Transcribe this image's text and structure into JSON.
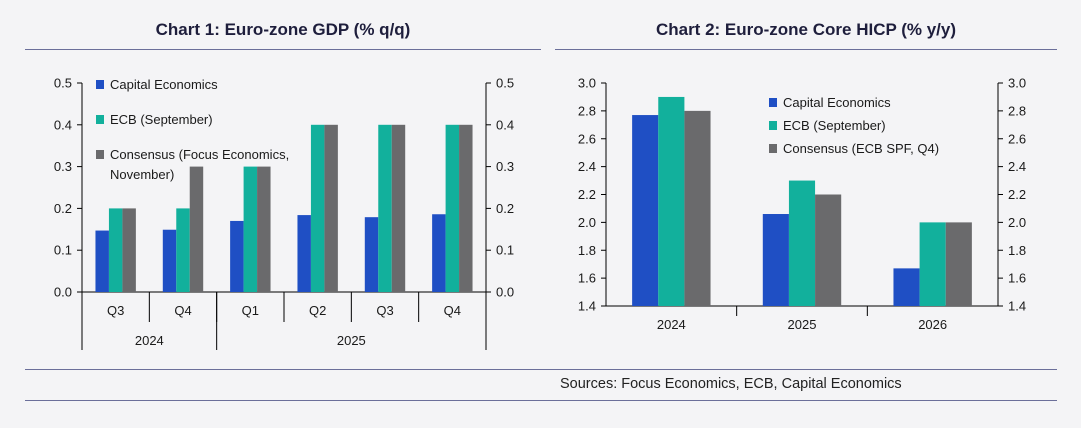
{
  "sources": "Sources: Focus Economics, ECB, Capital Economics",
  "colors": {
    "capital": "#1f4fc4",
    "ecb": "#12b09c",
    "consensus": "#6a6a6c"
  },
  "chart_data": [
    {
      "type": "bar",
      "title": "Chart 1: Euro-zone GDP (% q/q)",
      "categories": [
        "Q3",
        "Q4",
        "Q1",
        "Q2",
        "Q3",
        "Q4"
      ],
      "groups": [
        {
          "label": "2024",
          "span": 2
        },
        {
          "label": "2025",
          "span": 4
        }
      ],
      "series": [
        {
          "name": "Capital Economics",
          "values": [
            0.147,
            0.149,
            0.17,
            0.184,
            0.179,
            0.186
          ]
        },
        {
          "name": "ECB (September)",
          "values": [
            0.2,
            0.2,
            0.3,
            0.4,
            0.4,
            0.4
          ]
        },
        {
          "name": "Consensus (Focus Economics, November)",
          "values": [
            0.2,
            0.3,
            0.3,
            0.4,
            0.4,
            0.4
          ]
        }
      ],
      "legend_lines": [
        [
          "Capital Economics"
        ],
        [
          "ECB (September)"
        ],
        [
          "Consensus (Focus Economics,",
          "November)"
        ]
      ],
      "ylim": [
        0,
        0.5
      ],
      "ticks": [
        "0.0",
        "0.1",
        "0.2",
        "0.3",
        "0.4",
        "0.5"
      ],
      "dual_axis": true,
      "legend": "top-left",
      "grid": false
    },
    {
      "type": "bar",
      "title": "Chart 2: Euro-zone Core HICP (% y/y)",
      "categories": [
        "2024",
        "2025",
        "2026"
      ],
      "series": [
        {
          "name": "Capital Economics",
          "values": [
            2.77,
            2.06,
            1.67
          ]
        },
        {
          "name": "ECB (September)",
          "values": [
            2.9,
            2.3,
            2.0
          ]
        },
        {
          "name": "Consensus (ECB SPF, Q4)",
          "values": [
            2.8,
            2.2,
            2.0
          ]
        }
      ],
      "legend_lines": [
        [
          "Capital Economics"
        ],
        [
          "ECB (September)"
        ],
        [
          "Consensus (ECB SPF, Q4)"
        ]
      ],
      "ylim": [
        1.4,
        3.0
      ],
      "ticks": [
        "1.4",
        "1.6",
        "1.8",
        "2.0",
        "2.2",
        "2.4",
        "2.6",
        "2.8",
        "3.0"
      ],
      "dual_axis": true,
      "legend": "top-right",
      "grid": false
    }
  ]
}
